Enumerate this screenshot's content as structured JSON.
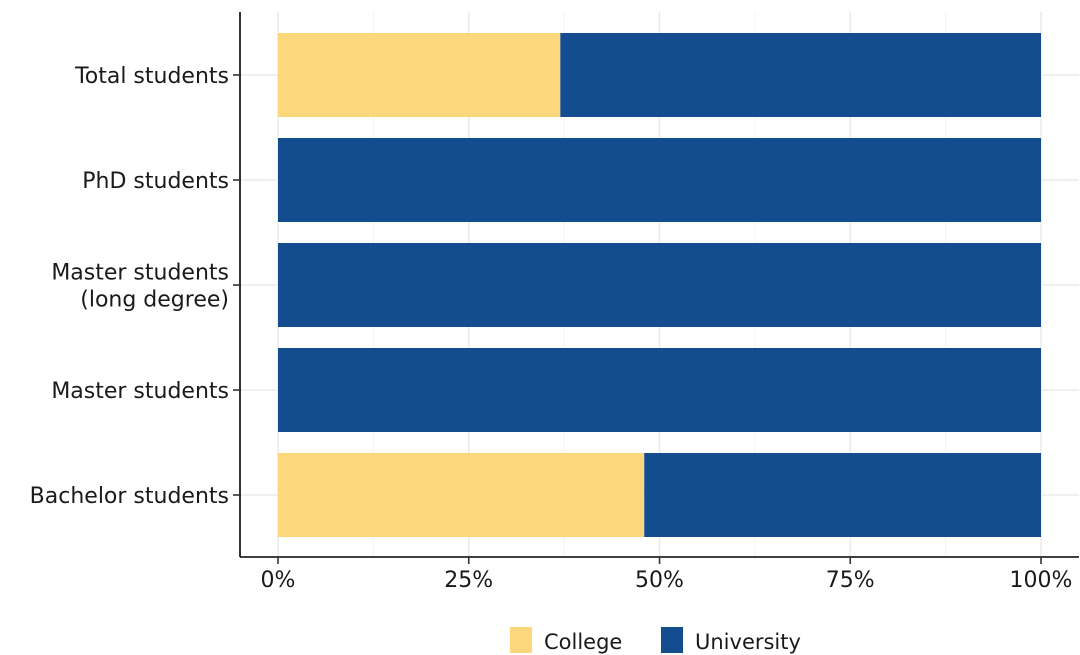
{
  "chart_data": {
    "type": "bar",
    "orientation": "horizontal",
    "stacked": "percent",
    "categories": [
      "Bachelor students",
      "Master students",
      "Master students\n(long degree)",
      "PhD students",
      "Total students"
    ],
    "series": [
      {
        "name": "College",
        "color": "#fdd77c",
        "values": [
          48,
          0,
          0,
          0,
          37
        ]
      },
      {
        "name": "University",
        "color": "#134d8f",
        "values": [
          52,
          100,
          100,
          100,
          63
        ]
      }
    ],
    "x_ticks": [
      "0%",
      "25%",
      "50%",
      "75%",
      "100%"
    ],
    "x_tick_values": [
      0,
      25,
      50,
      75,
      100
    ],
    "xlim": [
      0,
      100
    ],
    "title": "",
    "xlabel": "",
    "ylabel": "",
    "grid": true,
    "legend_position": "bottom"
  }
}
